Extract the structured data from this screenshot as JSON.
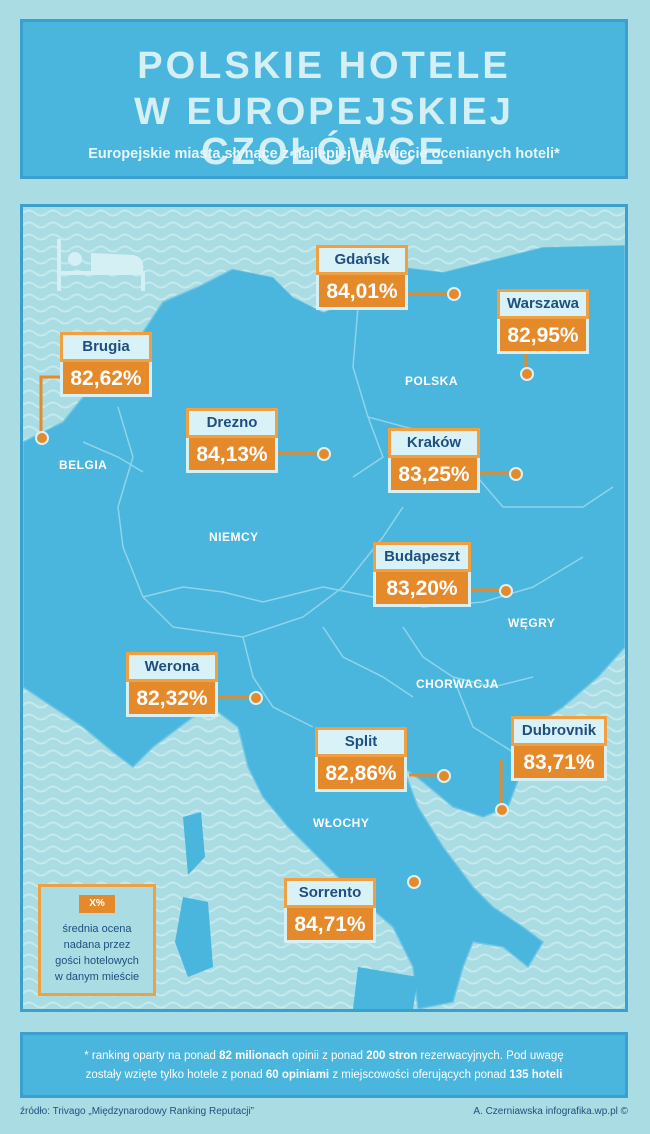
{
  "header": {
    "title_line1": "POLSKIE HOTELE",
    "title_line2": "W EUROPEJSKIEJ CZOŁÓWCE",
    "subtitle": "Europejskie miasta słynące z najlepiej na świecie ocenianych hoteli*"
  },
  "map": {
    "icon": "bed-icon",
    "countries": {
      "polska": "POLSKA",
      "belgia": "BELGIA",
      "niemcy": "NIEMCY",
      "wegry": "WĘGRY",
      "chorwacja": "CHORWACJA",
      "wlochy": "WŁOCHY"
    },
    "cities": {
      "gdansk": {
        "name": "Gdańsk",
        "value": "84,01%"
      },
      "warszawa": {
        "name": "Warszawa",
        "value": "82,95%"
      },
      "brugia": {
        "name": "Brugia",
        "value": "82,62%"
      },
      "drezno": {
        "name": "Drezno",
        "value": "84,13%"
      },
      "krakow": {
        "name": "Kraków",
        "value": "83,25%"
      },
      "budapeszt": {
        "name": "Budapeszt",
        "value": "83,20%"
      },
      "werona": {
        "name": "Werona",
        "value": "82,32%"
      },
      "split": {
        "name": "Split",
        "value": "82,86%"
      },
      "dubrovnik": {
        "name": "Dubrovnik",
        "value": "83,71%"
      },
      "sorrento": {
        "name": "Sorrento",
        "value": "84,71%"
      }
    }
  },
  "legend": {
    "badge": "X%",
    "line1": "średnia ocena",
    "line2": "nadana przez",
    "line3": "gości hotelowych",
    "line4": "w danym mieście"
  },
  "footnote": {
    "p1": "* ranking oparty na ponad ",
    "b1": "82 milionach",
    "p2": " opinii z ponad ",
    "b2": "200 stron",
    "p3": " rezerwacyjnych. Pod uwagę",
    "p4": "zostały wzięte tylko hotele z ponad ",
    "b3": "60 opiniami",
    "p5": " z miejscowości oferujących ponad ",
    "b4": "135 hoteli"
  },
  "source": "źródło: Trivago „Międzynarodowy Ranking Reputacji”",
  "author": "A. Czerniawska infografika.wp.pl ©",
  "colors": {
    "background": "#a9dde3",
    "panel": "#4ab5dd",
    "land": "#4ab5dd",
    "accent": "#e58a2b",
    "label_bg": "#d9f2f7",
    "text_dark": "#1e4f80"
  }
}
